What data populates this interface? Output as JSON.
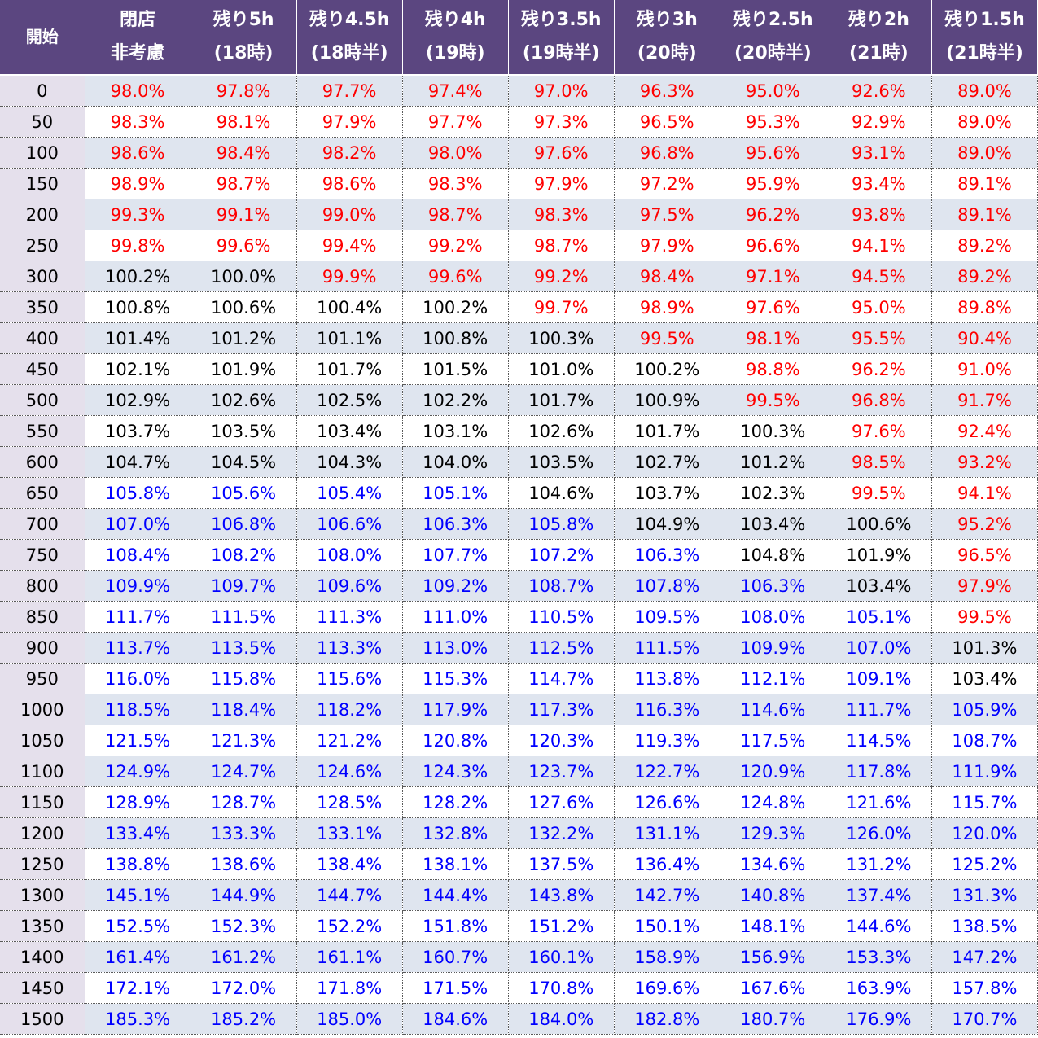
{
  "table": {
    "header": {
      "start_label": "開始",
      "columns": [
        {
          "line1": "閉店",
          "line2": "非考慮"
        },
        {
          "line1": "残り5h",
          "line2": "(18時)"
        },
        {
          "line1": "残り4.5h",
          "line2": "(18時半)"
        },
        {
          "line1": "残り4h",
          "line2": "(19時)"
        },
        {
          "line1": "残り3.5h",
          "line2": "(19時半)"
        },
        {
          "line1": "残り3h",
          "line2": "(20時)"
        },
        {
          "line1": "残り2.5h",
          "line2": "(20時半)"
        },
        {
          "line1": "残り2h",
          "line2": "(21時)"
        },
        {
          "line1": "残り1.5h",
          "line2": "(21時半)"
        }
      ]
    },
    "rows": [
      {
        "start": "0",
        "values": [
          "98.0%",
          "97.8%",
          "97.7%",
          "97.4%",
          "97.0%",
          "96.3%",
          "95.0%",
          "92.6%",
          "89.0%"
        ]
      },
      {
        "start": "50",
        "values": [
          "98.3%",
          "98.1%",
          "97.9%",
          "97.7%",
          "97.3%",
          "96.5%",
          "95.3%",
          "92.9%",
          "89.0%"
        ]
      },
      {
        "start": "100",
        "values": [
          "98.6%",
          "98.4%",
          "98.2%",
          "98.0%",
          "97.6%",
          "96.8%",
          "95.6%",
          "93.1%",
          "89.0%"
        ]
      },
      {
        "start": "150",
        "values": [
          "98.9%",
          "98.7%",
          "98.6%",
          "98.3%",
          "97.9%",
          "97.2%",
          "95.9%",
          "93.4%",
          "89.1%"
        ]
      },
      {
        "start": "200",
        "values": [
          "99.3%",
          "99.1%",
          "99.0%",
          "98.7%",
          "98.3%",
          "97.5%",
          "96.2%",
          "93.8%",
          "89.1%"
        ]
      },
      {
        "start": "250",
        "values": [
          "99.8%",
          "99.6%",
          "99.4%",
          "99.2%",
          "98.7%",
          "97.9%",
          "96.6%",
          "94.1%",
          "89.2%"
        ]
      },
      {
        "start": "300",
        "values": [
          "100.2%",
          "100.0%",
          "99.9%",
          "99.6%",
          "99.2%",
          "98.4%",
          "97.1%",
          "94.5%",
          "89.2%"
        ]
      },
      {
        "start": "350",
        "values": [
          "100.8%",
          "100.6%",
          "100.4%",
          "100.2%",
          "99.7%",
          "98.9%",
          "97.6%",
          "95.0%",
          "89.8%"
        ]
      },
      {
        "start": "400",
        "values": [
          "101.4%",
          "101.2%",
          "101.1%",
          "100.8%",
          "100.3%",
          "99.5%",
          "98.1%",
          "95.5%",
          "90.4%"
        ]
      },
      {
        "start": "450",
        "values": [
          "102.1%",
          "101.9%",
          "101.7%",
          "101.5%",
          "101.0%",
          "100.2%",
          "98.8%",
          "96.2%",
          "91.0%"
        ]
      },
      {
        "start": "500",
        "values": [
          "102.9%",
          "102.6%",
          "102.5%",
          "102.2%",
          "101.7%",
          "100.9%",
          "99.5%",
          "96.8%",
          "91.7%"
        ]
      },
      {
        "start": "550",
        "values": [
          "103.7%",
          "103.5%",
          "103.4%",
          "103.1%",
          "102.6%",
          "101.7%",
          "100.3%",
          "97.6%",
          "92.4%"
        ]
      },
      {
        "start": "600",
        "values": [
          "104.7%",
          "104.5%",
          "104.3%",
          "104.0%",
          "103.5%",
          "102.7%",
          "101.2%",
          "98.5%",
          "93.2%"
        ]
      },
      {
        "start": "650",
        "values": [
          "105.8%",
          "105.6%",
          "105.4%",
          "105.1%",
          "104.6%",
          "103.7%",
          "102.3%",
          "99.5%",
          "94.1%"
        ]
      },
      {
        "start": "700",
        "values": [
          "107.0%",
          "106.8%",
          "106.6%",
          "106.3%",
          "105.8%",
          "104.9%",
          "103.4%",
          "100.6%",
          "95.2%"
        ]
      },
      {
        "start": "750",
        "values": [
          "108.4%",
          "108.2%",
          "108.0%",
          "107.7%",
          "107.2%",
          "106.3%",
          "104.8%",
          "101.9%",
          "96.5%"
        ]
      },
      {
        "start": "800",
        "values": [
          "109.9%",
          "109.7%",
          "109.6%",
          "109.2%",
          "108.7%",
          "107.8%",
          "106.3%",
          "103.4%",
          "97.9%"
        ]
      },
      {
        "start": "850",
        "values": [
          "111.7%",
          "111.5%",
          "111.3%",
          "111.0%",
          "110.5%",
          "109.5%",
          "108.0%",
          "105.1%",
          "99.5%"
        ]
      },
      {
        "start": "900",
        "values": [
          "113.7%",
          "113.5%",
          "113.3%",
          "113.0%",
          "112.5%",
          "111.5%",
          "109.9%",
          "107.0%",
          "101.3%"
        ]
      },
      {
        "start": "950",
        "values": [
          "116.0%",
          "115.8%",
          "115.6%",
          "115.3%",
          "114.7%",
          "113.8%",
          "112.1%",
          "109.1%",
          "103.4%"
        ]
      },
      {
        "start": "1000",
        "values": [
          "118.5%",
          "118.4%",
          "118.2%",
          "117.9%",
          "117.3%",
          "116.3%",
          "114.6%",
          "111.7%",
          "105.9%"
        ]
      },
      {
        "start": "1050",
        "values": [
          "121.5%",
          "121.3%",
          "121.2%",
          "120.8%",
          "120.3%",
          "119.3%",
          "117.5%",
          "114.5%",
          "108.7%"
        ]
      },
      {
        "start": "1100",
        "values": [
          "124.9%",
          "124.7%",
          "124.6%",
          "124.3%",
          "123.7%",
          "122.7%",
          "120.9%",
          "117.8%",
          "111.9%"
        ]
      },
      {
        "start": "1150",
        "values": [
          "128.9%",
          "128.7%",
          "128.5%",
          "128.2%",
          "127.6%",
          "126.6%",
          "124.8%",
          "121.6%",
          "115.7%"
        ]
      },
      {
        "start": "1200",
        "values": [
          "133.4%",
          "133.3%",
          "133.1%",
          "132.8%",
          "132.2%",
          "131.1%",
          "129.3%",
          "126.0%",
          "120.0%"
        ]
      },
      {
        "start": "1250",
        "values": [
          "138.8%",
          "138.6%",
          "138.4%",
          "138.1%",
          "137.5%",
          "136.4%",
          "134.6%",
          "131.2%",
          "125.2%"
        ]
      },
      {
        "start": "1300",
        "values": [
          "145.1%",
          "144.9%",
          "144.7%",
          "144.4%",
          "143.8%",
          "142.7%",
          "140.8%",
          "137.4%",
          "131.3%"
        ]
      },
      {
        "start": "1350",
        "values": [
          "152.5%",
          "152.3%",
          "152.2%",
          "151.8%",
          "151.2%",
          "150.1%",
          "148.1%",
          "144.6%",
          "138.5%"
        ]
      },
      {
        "start": "1400",
        "values": [
          "161.4%",
          "161.2%",
          "161.1%",
          "160.7%",
          "160.1%",
          "158.9%",
          "156.9%",
          "153.3%",
          "147.2%"
        ]
      },
      {
        "start": "1450",
        "values": [
          "172.1%",
          "172.0%",
          "171.8%",
          "171.5%",
          "170.8%",
          "169.6%",
          "167.6%",
          "163.9%",
          "157.8%"
        ]
      },
      {
        "start": "1500",
        "values": [
          "185.3%",
          "185.2%",
          "185.0%",
          "184.6%",
          "184.0%",
          "182.8%",
          "180.7%",
          "176.9%",
          "170.7%"
        ]
      }
    ]
  },
  "colors": {
    "header_bg": "#5b4680",
    "header_text": "#ffffff",
    "start_col_bg": "#e5e0ec",
    "stripe_bg": "#dfe5ef",
    "below_100": "#ff0000",
    "range_100_105": "#000000",
    "above_105": "#0000ff"
  }
}
